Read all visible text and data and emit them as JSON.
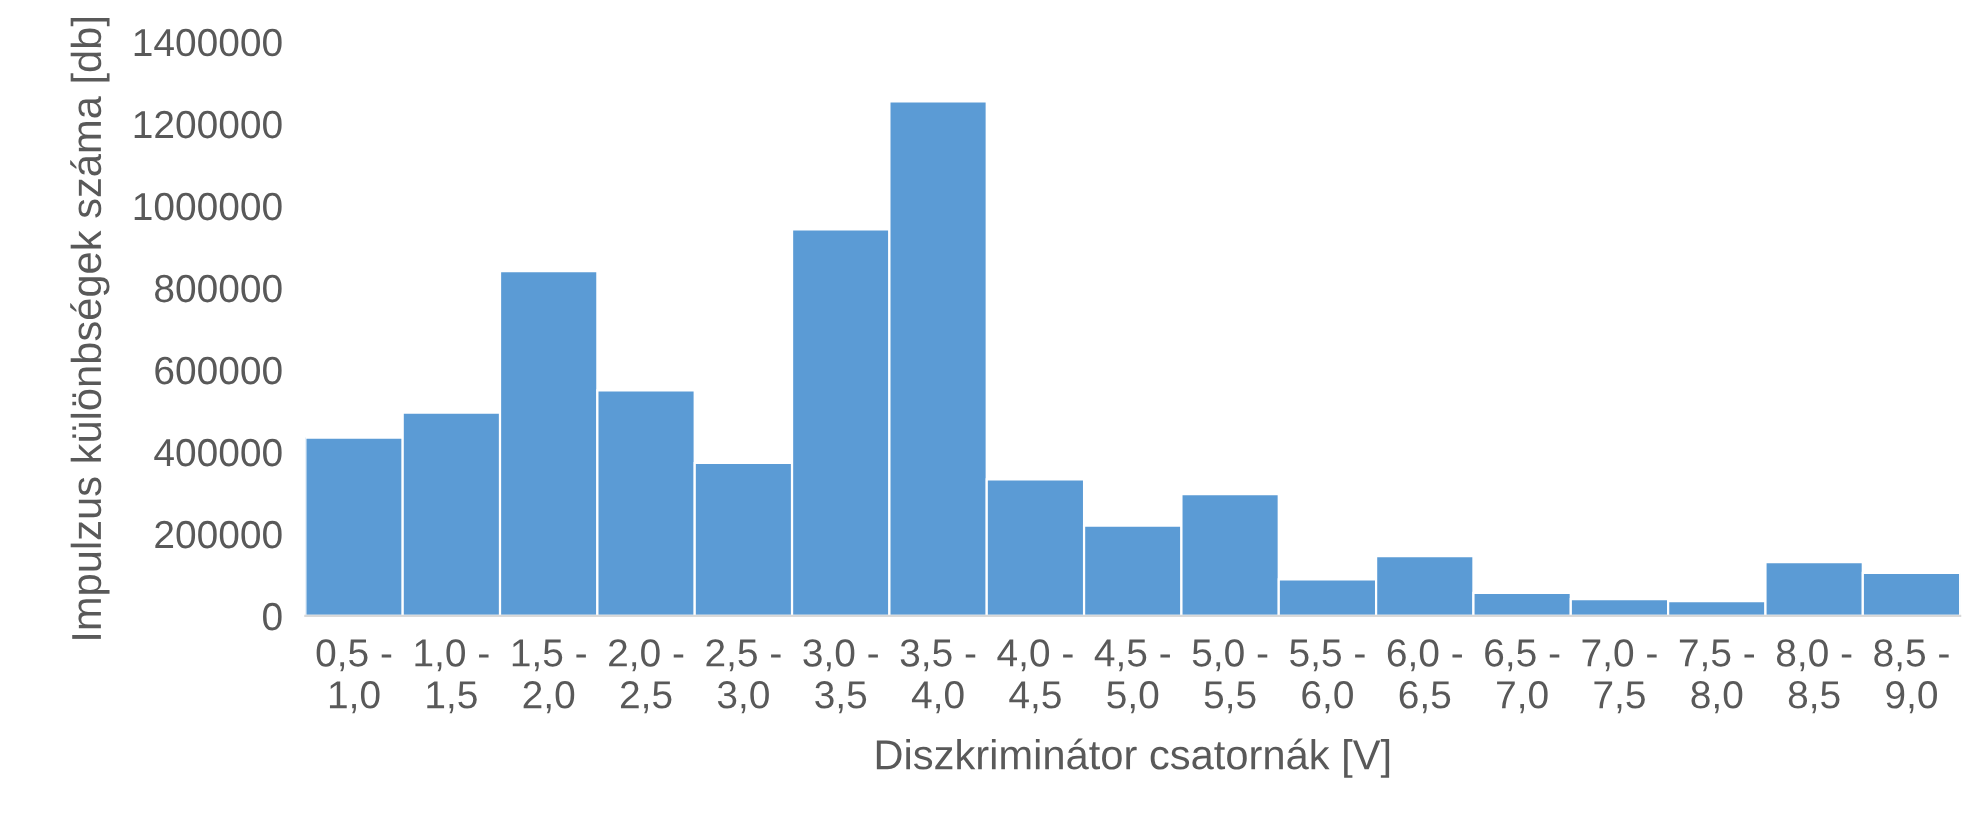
{
  "chart_data": {
    "type": "bar",
    "xlabel": "Diszkriminátor csatornák [V]",
    "ylabel": "Impulzus különbségek száma [db]",
    "categories": [
      "0,5 -\n1,0",
      "1,0 -\n1,5",
      "1,5 -\n2,0",
      "2,0 -\n2,5",
      "2,5 -\n3,0",
      "3,0 -\n3,5",
      "3,5 -\n4,0",
      "4,0 -\n4,5",
      "4,5 -\n5,0",
      "5,0 -\n5,5",
      "5,5 -\n6,0",
      "6,0 -\n6,5",
      "6,5 -\n7,0",
      "7,0 -\n7,5",
      "7,5 -\n8,0",
      "8,0 -\n8,5",
      "8,5 -\n9,0"
    ],
    "values": [
      435000,
      496000,
      841000,
      550000,
      373000,
      943000,
      1255000,
      333000,
      220000,
      297000,
      89000,
      146000,
      56000,
      41000,
      36000,
      131000,
      105000
    ],
    "color": "#5b9bd5",
    "ylim": [
      0,
      1400000
    ],
    "yticks": [
      0,
      200000,
      400000,
      600000,
      800000,
      1000000,
      1200000,
      1400000
    ],
    "grid": false
  }
}
